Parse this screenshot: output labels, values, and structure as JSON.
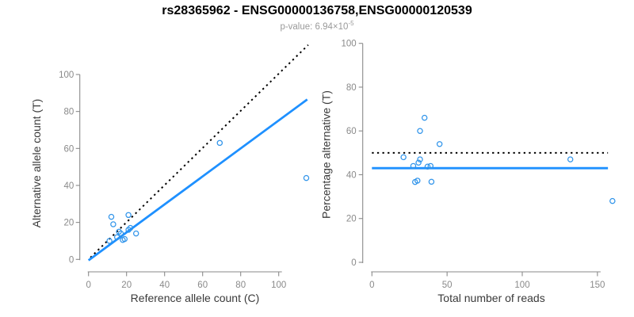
{
  "title": "rs28365962 - ENSG00000136758,ENSG00000120539",
  "subtitle": {
    "prefix": "p-value: ",
    "value": "6.94×10",
    "exponent": "-5"
  },
  "colors": {
    "accent_blue": "#1E90FF",
    "point_blue": "#3094EA",
    "dotted_black": "#000000",
    "axis_gray": "#8A8A8A",
    "tick_label_gray": "#8A8A8A",
    "axis_title_gray": "#3A3A3A",
    "subtitle_gray": "#9A9A9A"
  },
  "chart_data": [
    {
      "type": "scatter",
      "panel": "left",
      "xlabel": "Reference allele count (C)",
      "ylabel": "Alternative allele count (T)",
      "xticks": [
        0,
        20,
        40,
        60,
        80,
        100
      ],
      "yticks": [
        0,
        20,
        40,
        60,
        80,
        100
      ],
      "xlim": [
        -4.4,
        118.6
      ],
      "ylim": [
        -6.5,
        118.6
      ],
      "grid": false,
      "legend": "none",
      "points": [
        [
          12,
          23
        ],
        [
          13,
          19
        ],
        [
          21,
          24
        ],
        [
          11,
          10
        ],
        [
          16,
          15
        ],
        [
          17,
          14
        ],
        [
          15,
          12
        ],
        [
          21,
          16
        ],
        [
          22,
          17
        ],
        [
          18,
          10.5
        ],
        [
          19,
          11
        ],
        [
          25,
          14
        ],
        [
          69,
          63
        ],
        [
          114.5,
          44
        ]
      ],
      "lines": [
        {
          "name": "identity-line",
          "meaning": "y = x reference",
          "style": "dotted",
          "color": "#000000",
          "x1": 1,
          "y1": 1,
          "x2": 115.5,
          "y2": 116
        },
        {
          "name": "regression-line",
          "meaning": "fitted trend y ≈ 0.76x",
          "style": "solid",
          "color": "#1E90FF",
          "x1": 0,
          "y1": -0.5,
          "x2": 115,
          "y2": 86.5
        }
      ]
    },
    {
      "type": "scatter",
      "panel": "right",
      "xlabel": "Total number of reads",
      "ylabel": "Percentage alternative (T)",
      "xticks": [
        0,
        50,
        100,
        150
      ],
      "yticks": [
        0,
        20,
        40,
        60,
        80,
        100
      ],
      "xlim": [
        -6,
        162
      ],
      "ylim": [
        -4,
        104
      ],
      "grid": false,
      "legend": "none",
      "points": [
        [
          35,
          66
        ],
        [
          32,
          60
        ],
        [
          45,
          54
        ],
        [
          21,
          48
        ],
        [
          32,
          47
        ],
        [
          31,
          45.5
        ],
        [
          27.5,
          44
        ],
        [
          37,
          43.7
        ],
        [
          39,
          44
        ],
        [
          28.7,
          36.7
        ],
        [
          30.3,
          37.3
        ],
        [
          39.6,
          36.8
        ],
        [
          132,
          47
        ],
        [
          160,
          28
        ]
      ],
      "lines": [
        {
          "name": "expected-percentage-line",
          "meaning": "expected 50%",
          "style": "dotted",
          "color": "#000000",
          "x1": 0,
          "y1": 50,
          "x2": 157,
          "y2": 50
        },
        {
          "name": "mean-percentage-line",
          "meaning": "observed mean ≈ 43%",
          "style": "solid",
          "color": "#1E90FF",
          "x1": 0,
          "y1": 43,
          "x2": 157,
          "y2": 43
        }
      ]
    }
  ]
}
